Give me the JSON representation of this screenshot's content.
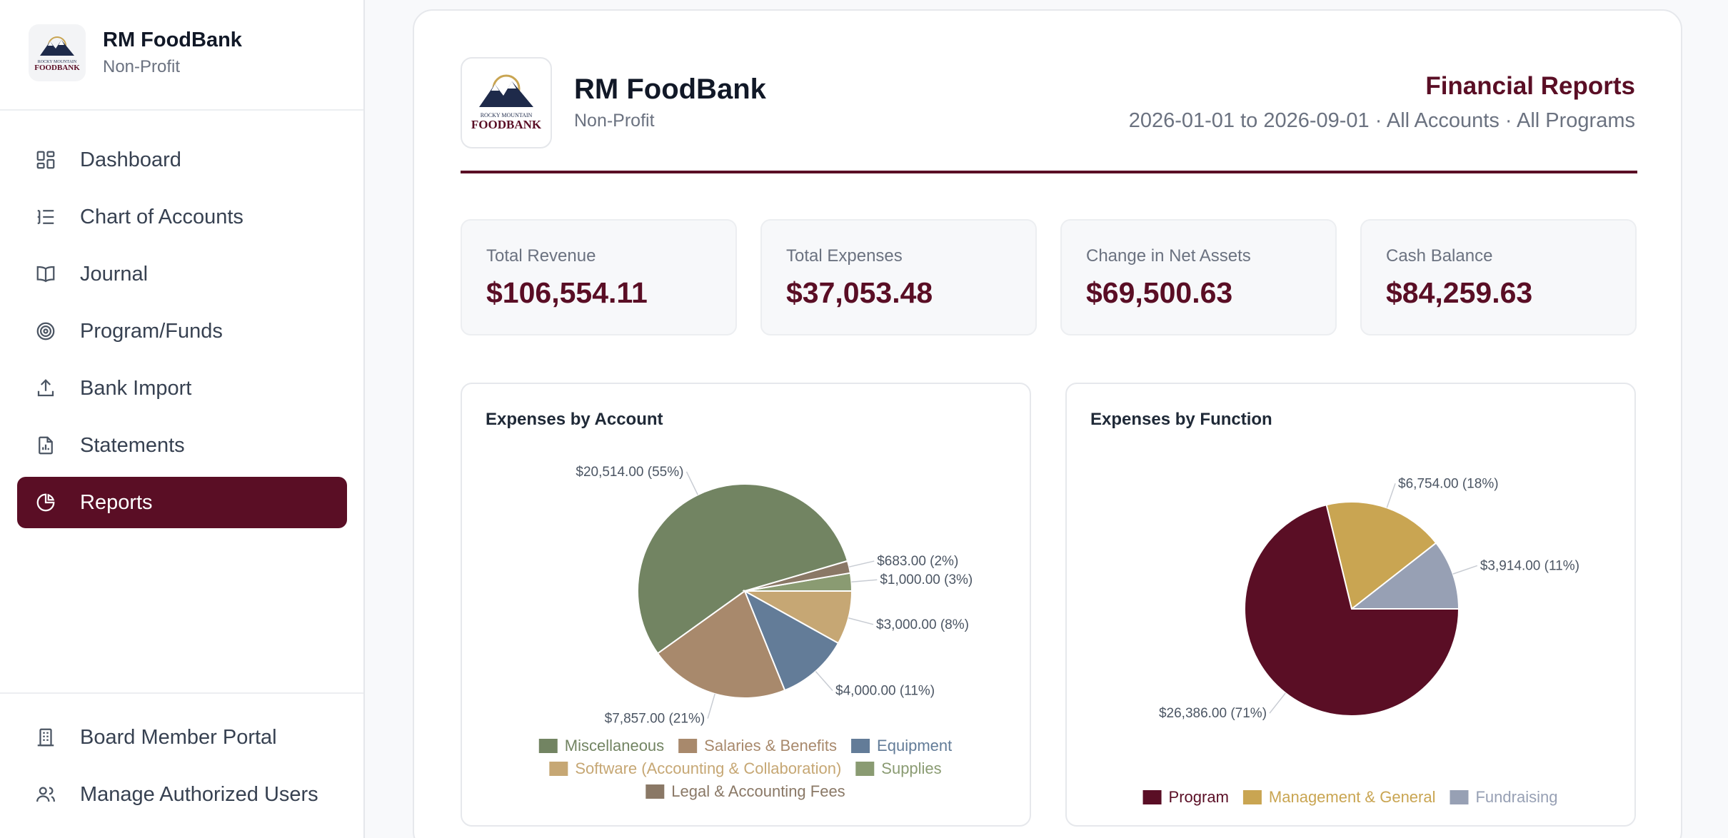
{
  "sidebar": {
    "org_name": "RM FoodBank",
    "org_type": "Non-Profit",
    "items": [
      {
        "label": "Dashboard",
        "icon": "dashboard-icon"
      },
      {
        "label": "Chart of Accounts",
        "icon": "list-icon"
      },
      {
        "label": "Journal",
        "icon": "book-icon"
      },
      {
        "label": "Program/Funds",
        "icon": "target-icon"
      },
      {
        "label": "Bank Import",
        "icon": "upload-icon"
      },
      {
        "label": "Statements",
        "icon": "file-chart-icon"
      },
      {
        "label": "Reports",
        "icon": "pie-chart-icon",
        "active": true
      }
    ],
    "bottom_items": [
      {
        "label": "Board Member Portal",
        "icon": "building-icon"
      },
      {
        "label": "Manage Authorized Users",
        "icon": "users-icon"
      }
    ]
  },
  "logo": {
    "top_text": "ROCKY MOUNTAIN",
    "main_text": "FOODBANK"
  },
  "report": {
    "org_name": "RM FoodBank",
    "org_type": "Non-Profit",
    "title": "Financial Reports",
    "range": "2026-01-01 to 2026-09-01 · All Accounts · All Programs"
  },
  "kpis": [
    {
      "label": "Total Revenue",
      "value": "$106,554.11"
    },
    {
      "label": "Total Expenses",
      "value": "$37,053.48"
    },
    {
      "label": "Change in Net Assets",
      "value": "$69,500.63"
    },
    {
      "label": "Cash Balance",
      "value": "$84,259.63"
    }
  ],
  "colors": {
    "brand": "#5a0e25"
  },
  "chart_data": [
    {
      "type": "pie",
      "title": "Expenses by Account",
      "slices": [
        {
          "name": "Supplies",
          "value": 1000.0,
          "label": "$1,000.00 (3%)",
          "color": "#8a9b72"
        },
        {
          "name": "Legal & Accounting Fees",
          "value": 683.0,
          "label": "$683.00 (2%)",
          "color": "#8a7866"
        },
        {
          "name": "Miscellaneous",
          "value": 20514.0,
          "label": "$20,514.00 (55%)",
          "color": "#728462"
        },
        {
          "name": "Salaries & Benefits",
          "value": 7857.0,
          "label": "$7,857.00 (21%)",
          "color": "#a8896c"
        },
        {
          "name": "Equipment",
          "value": 4000.0,
          "label": "$4,000.00 (11%)",
          "color": "#637c98"
        },
        {
          "name": "Software (Accounting & Collaboration)",
          "value": 3000.0,
          "label": "$3,000.00 (8%)",
          "color": "#c6a774"
        }
      ],
      "legend": [
        [
          "Miscellaneous",
          "Salaries & Benefits",
          "Equipment"
        ],
        [
          "Software (Accounting & Collaboration)",
          "Supplies"
        ],
        [
          "Legal & Accounting Fees"
        ]
      ]
    },
    {
      "type": "pie",
      "title": "Expenses by Function",
      "slices": [
        {
          "name": "Fundraising",
          "value": 3914.0,
          "label": "$3,914.00 (11%)",
          "color": "#97a0b4"
        },
        {
          "name": "Management & General",
          "value": 6754.0,
          "label": "$6,754.00 (18%)",
          "color": "#c9a552"
        },
        {
          "name": "Program",
          "value": 26386.0,
          "label": "$26,386.00 (71%)",
          "color": "#5a0e25"
        }
      ],
      "legend": [
        [
          "Program",
          "Management & General",
          "Fundraising"
        ]
      ]
    }
  ]
}
